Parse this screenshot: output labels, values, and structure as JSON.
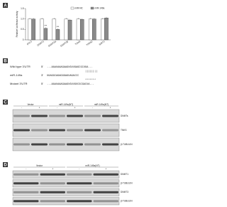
{
  "panels": [
    "A",
    "B",
    "C",
    "D"
  ],
  "chart_data": {
    "type": "bar",
    "ylabel": "Relative luciferase activity",
    "categories": [
      "pGL3",
      "DNMT1",
      "DNMT3a",
      "DNMT3b",
      "TNKS",
      "TNKS2",
      "SIRT1"
    ],
    "series": [
      {
        "name": "miR-NC",
        "color": "#ffffff",
        "values": [
          1.0,
          1.0,
          1.0,
          1.0,
          1.0,
          1.0,
          1.0
        ]
      },
      {
        "name": "miR-149a",
        "color": "#8a8a8a",
        "values": [
          1.0,
          0.55,
          0.5,
          0.95,
          0.98,
          1.0,
          1.05
        ]
      }
    ],
    "annotations": [
      "***",
      "***"
    ],
    "ylim": [
      0,
      1.5
    ],
    "yticks": [
      0,
      0.5,
      {
        "value": 1,
        "label": "1.0"
      },
      1.5
    ]
  },
  "sequences": [
    {
      "label": "Wild type 3'UTR",
      "end": "5'",
      "seq": "...AAAUAAAGAAGUGUUGAGCGCUGA..."
    },
    {
      "label": "",
      "end": "",
      "seq": "||||||||"
    },
    {
      "label": "miR-149a",
      "end": "3'",
      "seq": "UGAGGCAGAGGGAGUAGACCC"
    },
    {
      "label": "",
      "end": "",
      "seq": "*******"
    },
    {
      "label": "Mutant 3'UTR",
      "end": "5'",
      "seq": "...AAAUAAAGAAGUGUUGUCGCGACUA..."
    }
  ],
  "blot_c": {
    "groups": [
      "Vector",
      "miR-149a(NT)",
      "miR-149a(NT)"
    ],
    "lanes": [
      "-",
      "+",
      "-",
      "+",
      "-",
      "+"
    ],
    "proteins": [
      "DNMTs",
      "TNKS",
      "β-TUBULIN"
    ]
  },
  "blot_d": {
    "groups": [
      "Vector",
      "miR-149a(NT)"
    ],
    "lanes": [
      "-",
      "+",
      "-",
      "+"
    ],
    "proteins": [
      "DNMT1",
      "β-TUBULIN",
      "DNMT3",
      "β-TUBULIN"
    ]
  }
}
